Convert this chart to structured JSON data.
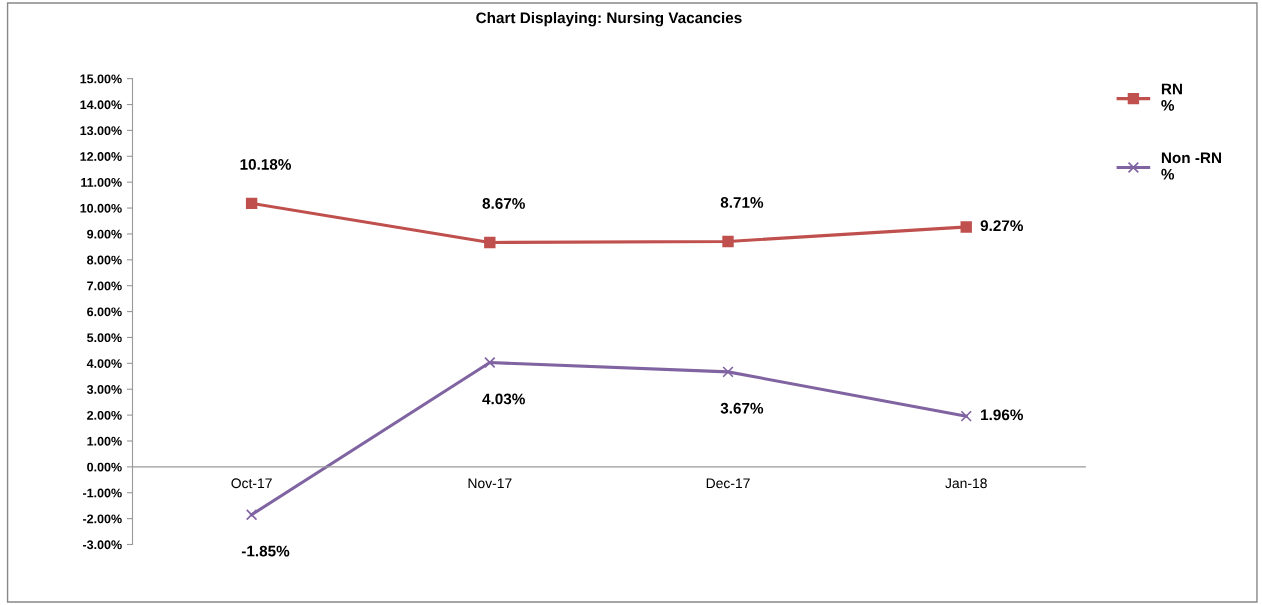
{
  "chart_data": {
    "type": "line",
    "title": "Chart Displaying: Nursing Vacancies",
    "categories": [
      "Oct-17",
      "Nov-17",
      "Dec-17",
      "Jan-18"
    ],
    "series": [
      {
        "name": "RN\n%",
        "color": "#c0504d",
        "marker": "square",
        "values": [
          10.18,
          8.67,
          8.71,
          9.27
        ],
        "value_labels": [
          "10.18%",
          "8.67%",
          "8.71%",
          "9.27%"
        ]
      },
      {
        "name": "Non -RN\n%",
        "color": "#8064a2",
        "marker": "cross",
        "values": [
          -1.85,
          4.03,
          3.67,
          1.96
        ],
        "value_labels": [
          "-1.85%",
          "4.03%",
          "3.67%",
          "1.96%"
        ]
      }
    ],
    "ylim": [
      -3,
      15
    ],
    "yticks": [
      {
        "value": -3,
        "label": "-3.00%"
      },
      {
        "value": -2,
        "label": "-2.00%"
      },
      {
        "value": -1,
        "label": "-1.00%"
      },
      {
        "value": 0,
        "label": "0.00%"
      },
      {
        "value": 1,
        "label": "1.00%"
      },
      {
        "value": 2,
        "label": "2.00%"
      },
      {
        "value": 3,
        "label": "3.00%"
      },
      {
        "value": 4,
        "label": "4.00%"
      },
      {
        "value": 5,
        "label": "5.00%"
      },
      {
        "value": 6,
        "label": "6.00%"
      },
      {
        "value": 7,
        "label": "7.00%"
      },
      {
        "value": 8,
        "label": "8.00%"
      },
      {
        "value": 9,
        "label": "9.00%"
      },
      {
        "value": 10,
        "label": "10.00%"
      },
      {
        "value": 11,
        "label": "11.00%"
      },
      {
        "value": 12,
        "label": "12.00%"
      },
      {
        "value": 13,
        "label": "13.00%"
      },
      {
        "value": 14,
        "label": "14.00%"
      },
      {
        "value": 15,
        "label": "15.00%"
      }
    ],
    "grid": false,
    "legend": "right",
    "line_style": "solid"
  }
}
